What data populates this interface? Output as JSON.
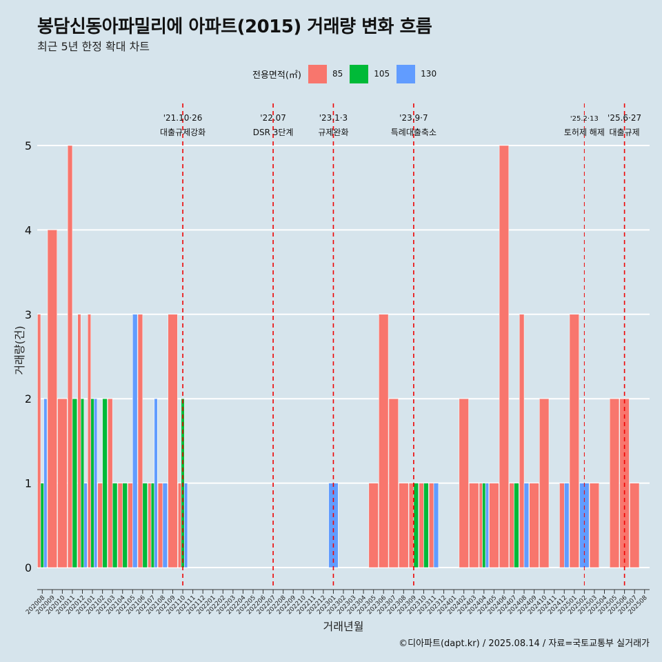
{
  "header": {
    "title": "봉담신동아파밀리에 아파트(2015) 거래량 변화 흐름",
    "subtitle": "최근 5년 한정 확대 차트"
  },
  "legend": {
    "title": "전용면적(㎡)",
    "items": [
      {
        "label": "85",
        "color": "#f8766d"
      },
      {
        "label": "105",
        "color": "#00ba38"
      },
      {
        "label": "130",
        "color": "#619cff"
      }
    ]
  },
  "caption": "©디아파트(dapt.kr) / 2025.08.14 / 자료=국토교통부 실거래가",
  "chart_data": {
    "type": "bar",
    "xlabel": "거래년월",
    "ylabel": "거래량(건)",
    "ylim": [
      0,
      5
    ],
    "yticks": [
      0,
      1,
      2,
      3,
      4,
      5
    ],
    "grid": true,
    "legend_position": "top",
    "categories": [
      "202008",
      "202009",
      "202010",
      "202011",
      "202012",
      "202101",
      "202102",
      "202103",
      "202104",
      "202105",
      "202106",
      "202107",
      "202108",
      "202109",
      "202110",
      "202111",
      "202112",
      "202201",
      "202202",
      "202203",
      "202204",
      "202205",
      "202206",
      "202207",
      "202208",
      "202209",
      "202210",
      "202211",
      "202212",
      "202301",
      "202302",
      "202303",
      "202304",
      "202305",
      "202306",
      "202307",
      "202308",
      "202309",
      "202310",
      "202311",
      "202312",
      "202401",
      "202402",
      "202403",
      "202404",
      "202405",
      "202406",
      "202407",
      "202408",
      "202409",
      "202410",
      "202411",
      "202412",
      "202501",
      "202502",
      "202503",
      "202504",
      "202505",
      "202506",
      "202507",
      "202508"
    ],
    "series": [
      {
        "name": "85",
        "values": [
          3,
          4,
          2,
          5,
          3,
          3,
          1,
          2,
          1,
          1,
          3,
          1,
          1,
          3,
          1,
          0,
          0,
          0,
          0,
          0,
          0,
          0,
          0,
          0,
          0,
          0,
          0,
          0,
          0,
          0,
          0,
          0,
          0,
          1,
          3,
          2,
          1,
          1,
          1,
          1,
          0,
          0,
          2,
          1,
          1,
          1,
          5,
          1,
          3,
          1,
          2,
          0,
          1,
          3,
          0,
          1,
          0,
          2,
          2,
          1,
          0
        ]
      },
      {
        "name": "105",
        "values": [
          1,
          0,
          0,
          2,
          2,
          2,
          2,
          1,
          1,
          0,
          1,
          1,
          0,
          0,
          2,
          0,
          0,
          0,
          0,
          0,
          0,
          0,
          0,
          0,
          0,
          0,
          0,
          0,
          0,
          0,
          0,
          0,
          0,
          0,
          0,
          0,
          0,
          1,
          1,
          0,
          0,
          0,
          0,
          0,
          1,
          0,
          0,
          1,
          0,
          0,
          0,
          0,
          0,
          0,
          0,
          0,
          0,
          0,
          0,
          0,
          0
        ]
      },
      {
        "name": "130",
        "values": [
          2,
          0,
          0,
          0,
          1,
          2,
          0,
          0,
          0,
          3,
          0,
          2,
          1,
          0,
          1,
          0,
          0,
          0,
          0,
          0,
          0,
          0,
          0,
          0,
          0,
          0,
          0,
          0,
          0,
          1,
          0,
          0,
          0,
          0,
          0,
          0,
          0,
          0,
          0,
          1,
          0,
          0,
          0,
          0,
          1,
          0,
          0,
          0,
          1,
          0,
          0,
          0,
          1,
          0,
          1,
          0,
          0,
          0,
          0,
          0,
          0
        ]
      }
    ],
    "annotations": [
      {
        "x": "202110",
        "date": "'21.10·26",
        "label": "대출규제강화"
      },
      {
        "x": "202207",
        "date": "'22.07",
        "label": "DSR 3단계"
      },
      {
        "x": "202301",
        "date": "'23.1·3",
        "label": "규제완화"
      },
      {
        "x": "202309",
        "date": "'23.9·7",
        "label": "특례대출축소"
      },
      {
        "x": "202502",
        "date": "'25.2·13",
        "label": "토허제 해제"
      },
      {
        "x": "202506",
        "date": "'25.6·27",
        "label": "대출규제"
      }
    ]
  }
}
